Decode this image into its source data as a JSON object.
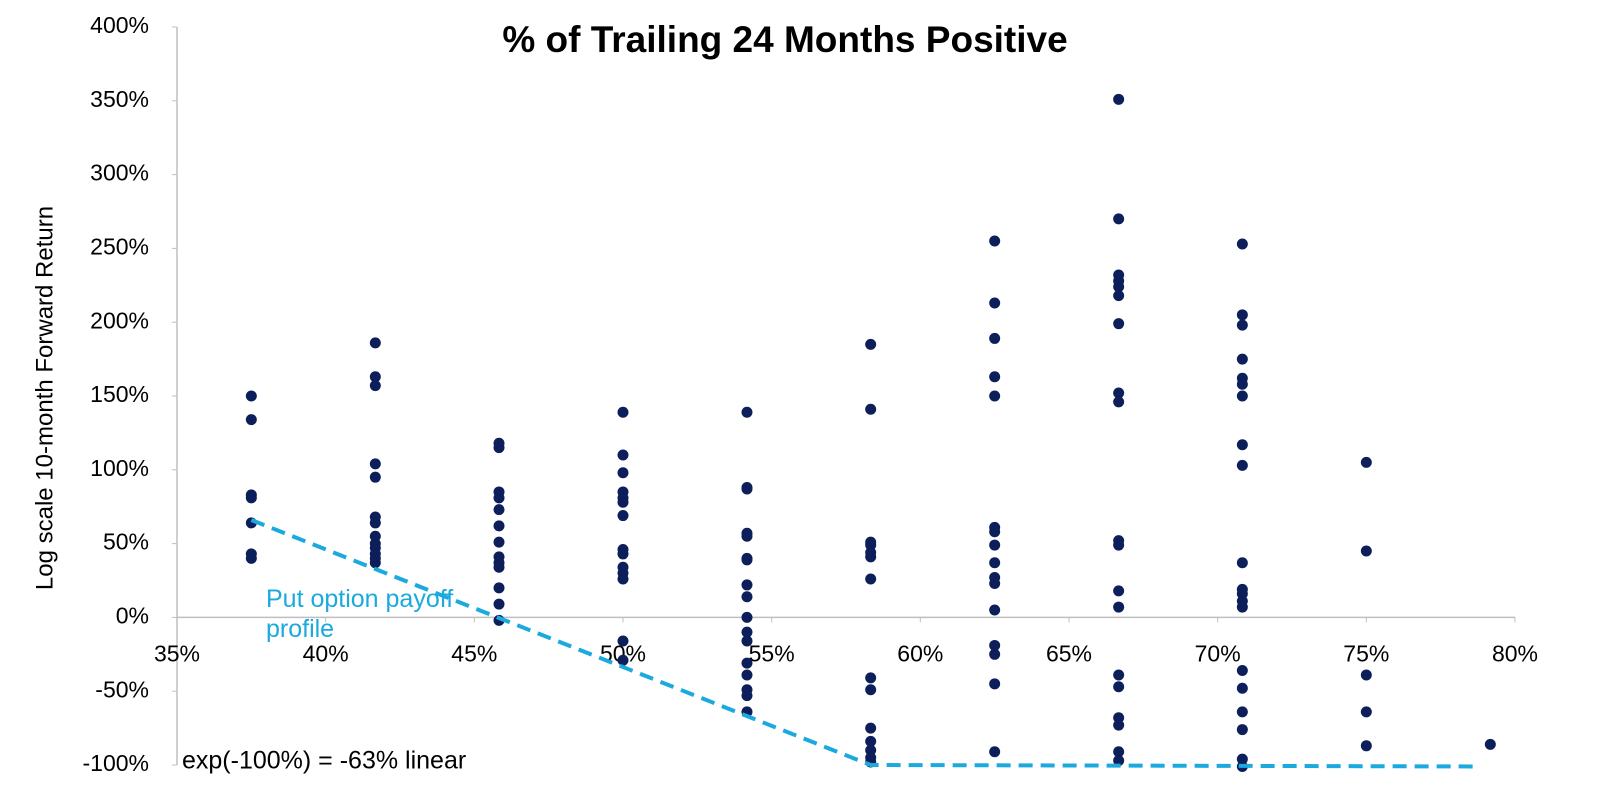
{
  "chart_data": {
    "type": "scatter",
    "title": "% of Trailing 24 Months Positive",
    "y_label": "Log scale 10-month Forward Return",
    "annotations": [
      "exp(-100%) = -63% linear"
    ],
    "xlim": [
      35,
      80
    ],
    "xticks": [
      {
        "value": 35,
        "label": "35%"
      },
      {
        "value": 40,
        "label": "40%"
      },
      {
        "value": 45,
        "label": "45%"
      },
      {
        "value": 50,
        "label": "50%"
      },
      {
        "value": 55,
        "label": "55%"
      },
      {
        "value": 60,
        "label": "60%"
      },
      {
        "value": 65,
        "label": "65%"
      },
      {
        "value": 70,
        "label": "70%"
      },
      {
        "value": 75,
        "label": "75%"
      },
      {
        "value": 80,
        "label": "80%"
      }
    ],
    "ylim": [
      -100,
      400
    ],
    "yticks": [
      {
        "value": -100,
        "label": "-100%"
      },
      {
        "value": -50,
        "label": "-50%"
      },
      {
        "value": 0,
        "label": "0%"
      },
      {
        "value": 50,
        "label": "50%"
      },
      {
        "value": 100,
        "label": "100%"
      },
      {
        "value": 150,
        "label": "150%"
      },
      {
        "value": 200,
        "label": "200%"
      },
      {
        "value": 250,
        "label": "250%"
      },
      {
        "value": 300,
        "label": "300%"
      },
      {
        "value": 350,
        "label": "350%"
      },
      {
        "value": 400,
        "label": "400%"
      }
    ],
    "series": [
      {
        "color": "#0c1f5b",
        "mode": "markers",
        "x": [
          37.5,
          37.5,
          37.5,
          37.5,
          37.5,
          37.5,
          37.5,
          41.67,
          41.67,
          41.67,
          41.67,
          41.67,
          41.67,
          41.67,
          41.67,
          41.67,
          41.67,
          41.67,
          41.67,
          41.67,
          45.83,
          45.83,
          45.83,
          45.83,
          45.83,
          45.83,
          45.83,
          45.83,
          45.83,
          45.83,
          45.83,
          45.83,
          45.83,
          50,
          50,
          50,
          50,
          50,
          50,
          50,
          50,
          50,
          50,
          50,
          50,
          50,
          50,
          54.17,
          54.17,
          54.17,
          54.17,
          54.17,
          54.17,
          54.17,
          54.17,
          54.17,
          54.17,
          54.17,
          54.17,
          54.17,
          54.17,
          54.17,
          54.17,
          54.17,
          58.33,
          58.33,
          58.33,
          58.33,
          58.33,
          58.33,
          58.33,
          58.33,
          58.33,
          58.33,
          58.33,
          58.33,
          58.33,
          58.33,
          62.5,
          62.5,
          62.5,
          62.5,
          62.5,
          62.5,
          62.5,
          62.5,
          62.5,
          62.5,
          62.5,
          62.5,
          62.5,
          62.5,
          62.5,
          62.5,
          66.67,
          66.67,
          66.67,
          66.67,
          66.67,
          66.67,
          66.67,
          66.67,
          66.67,
          66.67,
          66.67,
          66.67,
          66.67,
          66.67,
          66.67,
          66.67,
          66.67,
          66.67,
          66.67,
          70.83,
          70.83,
          70.83,
          70.83,
          70.83,
          70.83,
          70.83,
          70.83,
          70.83,
          70.83,
          70.83,
          70.83,
          70.83,
          70.83,
          70.83,
          70.83,
          70.83,
          70.83,
          70.83,
          70.83,
          75,
          75,
          75,
          75,
          75,
          79.17
        ],
        "values": [
          150,
          134,
          83,
          81,
          64,
          43,
          40,
          186,
          163,
          157,
          104,
          95,
          68,
          64,
          55,
          50,
          47,
          43,
          40,
          37,
          118,
          115,
          85,
          81,
          73,
          62,
          51,
          41,
          37,
          34,
          20,
          9,
          -2,
          139,
          110,
          98,
          85,
          81,
          78,
          69,
          46,
          43,
          34,
          30,
          26,
          -16,
          -29,
          139,
          88,
          87,
          57,
          55,
          40,
          39,
          22,
          14,
          0,
          -10,
          -16,
          -31,
          -39,
          -49,
          -53,
          -64,
          185,
          141,
          51,
          49,
          44,
          41,
          26,
          -41,
          -49,
          -75,
          -84,
          -90,
          -95,
          -98,
          255,
          213,
          189,
          163,
          150,
          61,
          58,
          49,
          37,
          27,
          23,
          5,
          -19,
          -25,
          -45,
          -91,
          351,
          270,
          232,
          228,
          224,
          218,
          199,
          152,
          146,
          52,
          49,
          18,
          7,
          -39,
          -47,
          -68,
          -73,
          -91,
          -97,
          253,
          205,
          198,
          175,
          162,
          158,
          150,
          117,
          103,
          37,
          19,
          16,
          11,
          7,
          -36,
          -48,
          -64,
          -76,
          -96,
          -101,
          105,
          45,
          -39,
          -64,
          -87,
          -86
        ]
      },
      {
        "name": "Put option payoff profile",
        "color": "#1ba9de",
        "mode": "dashed-line",
        "x": [
          37.5,
          58.33,
          78.83
        ],
        "values": [
          66,
          -100,
          -101
        ]
      }
    ]
  }
}
